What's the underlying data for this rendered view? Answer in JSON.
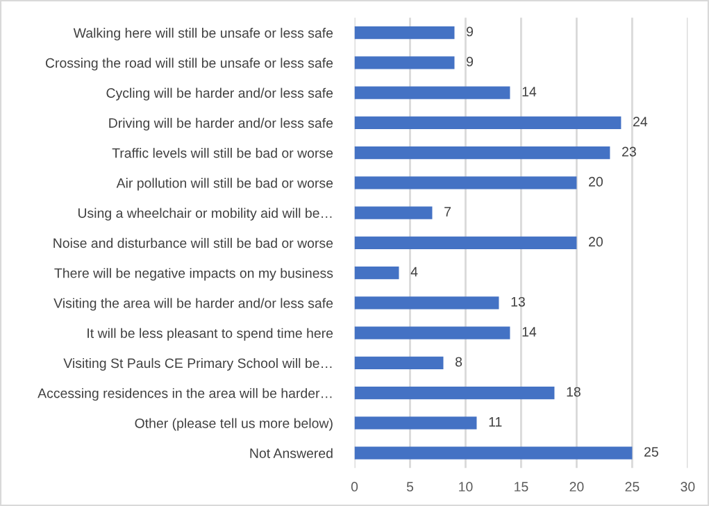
{
  "chart_data": {
    "type": "bar",
    "orientation": "horizontal",
    "categories": [
      "Walking here will still be unsafe or less safe",
      "Crossing the road will still be unsafe or less safe",
      "Cycling will be harder and/or less safe",
      "Driving will be harder and/or less safe",
      "Traffic levels will still be bad or worse",
      "Air pollution will still be bad or worse",
      "Using a wheelchair or mobility aid will be…",
      "Noise and disturbance will still be bad or worse",
      "There will be negative impacts on my business",
      "Visiting the area will be harder and/or less safe",
      "It will be less pleasant to spend time here",
      "Visiting St Pauls CE Primary School will be…",
      "Accessing residences in the area will be harder…",
      "Other (please tell us more below)",
      "Not Answered"
    ],
    "values": [
      9,
      9,
      14,
      24,
      23,
      20,
      7,
      20,
      4,
      13,
      14,
      8,
      18,
      11,
      25
    ],
    "color": "#4472c4",
    "xlim": [
      0,
      30
    ],
    "xticks": [
      0,
      5,
      10,
      15,
      20,
      25,
      30
    ],
    "grid": "x",
    "data_labels": true
  }
}
